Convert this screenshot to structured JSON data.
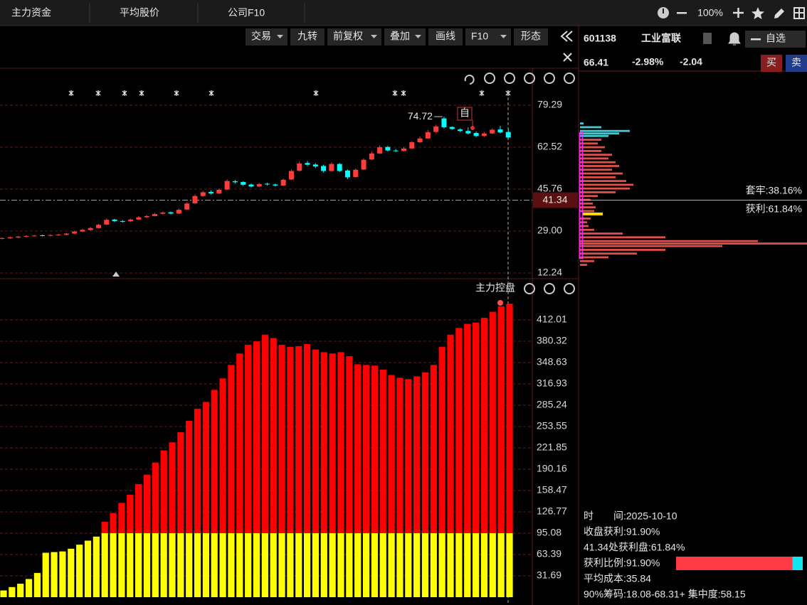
{
  "tabs": [
    "主力资金",
    "平均股价",
    "公司F10"
  ],
  "zoom": "100%",
  "toolbar": [
    "交易",
    "九转",
    "前复权",
    "叠加",
    "画线",
    "F10",
    "形态"
  ],
  "toolbar_dropdown": [
    true,
    false,
    true,
    true,
    false,
    true,
    false
  ],
  "stock": {
    "code": "601138",
    "name": "工业富联",
    "watch": "自选",
    "price": 66.41,
    "change_pct": "-2.98%",
    "change": -2.04,
    "buy": "买",
    "sell": "卖"
  },
  "price_chart": {
    "type": "candlestick",
    "ohlc": [
      [
        25.9,
        26.2,
        26.5,
        25.7
      ],
      [
        26.1,
        26.5,
        26.8,
        25.9
      ],
      [
        26.4,
        26.8,
        27.1,
        26.2
      ],
      [
        26.7,
        27.0,
        27.3,
        26.5
      ],
      [
        27.0,
        27.2,
        27.5,
        26.8
      ],
      [
        27.3,
        27.1,
        27.6,
        26.9
      ],
      [
        27.1,
        27.4,
        27.7,
        26.9
      ],
      [
        27.4,
        27.6,
        27.9,
        27.2
      ],
      [
        27.5,
        28.0,
        28.3,
        27.3
      ],
      [
        28.0,
        28.8,
        29.1,
        27.8
      ],
      [
        28.8,
        29.5,
        29.9,
        28.6
      ],
      [
        29.4,
        30.2,
        30.6,
        29.2
      ],
      [
        30.2,
        31.5,
        31.9,
        30.0
      ],
      [
        31.6,
        33.5,
        34.0,
        31.4
      ],
      [
        33.6,
        33.0,
        33.9,
        32.6
      ],
      [
        33.0,
        32.8,
        33.4,
        32.4
      ],
      [
        32.9,
        33.6,
        34.0,
        32.6
      ],
      [
        33.6,
        34.5,
        35.0,
        33.4
      ],
      [
        34.5,
        35.0,
        35.4,
        34.2
      ],
      [
        35.0,
        35.8,
        36.3,
        34.8
      ],
      [
        35.9,
        36.4,
        36.9,
        35.6
      ],
      [
        36.5,
        36.0,
        36.8,
        35.6
      ],
      [
        36.0,
        37.5,
        38.0,
        35.8
      ],
      [
        37.6,
        40.0,
        40.5,
        37.4
      ],
      [
        40.1,
        43.0,
        43.6,
        39.8
      ],
      [
        43.0,
        44.5,
        45.0,
        42.6
      ],
      [
        44.6,
        44.0,
        45.2,
        43.6
      ],
      [
        44.0,
        45.5,
        46.0,
        43.8
      ],
      [
        45.6,
        49.0,
        49.6,
        45.4
      ],
      [
        48.9,
        48.5,
        49.4,
        48.0
      ],
      [
        48.6,
        47.5,
        48.9,
        47.0
      ],
      [
        47.6,
        46.8,
        48.0,
        46.4
      ],
      [
        46.8,
        47.8,
        48.2,
        46.5
      ],
      [
        47.9,
        47.6,
        48.3,
        47.2
      ],
      [
        47.6,
        47.2,
        48.0,
        46.8
      ],
      [
        47.2,
        49.5,
        50.0,
        47.0
      ],
      [
        49.6,
        53.0,
        53.6,
        49.4
      ],
      [
        53.1,
        56.0,
        56.8,
        52.8
      ],
      [
        56.2,
        55.5,
        57.0,
        55.0
      ],
      [
        55.6,
        54.8,
        56.2,
        54.2
      ],
      [
        55.0,
        53.0,
        55.5,
        52.4
      ],
      [
        53.0,
        55.8,
        56.4,
        52.8
      ],
      [
        55.8,
        53.0,
        56.2,
        52.6
      ],
      [
        53.2,
        50.5,
        53.6,
        49.8
      ],
      [
        50.6,
        53.5,
        54.0,
        50.4
      ],
      [
        53.6,
        57.5,
        58.0,
        53.4
      ],
      [
        57.6,
        60.0,
        60.8,
        57.4
      ],
      [
        60.0,
        62.5,
        63.2,
        59.8
      ],
      [
        62.6,
        61.2,
        63.0,
        60.8
      ],
      [
        61.2,
        61.0,
        61.8,
        60.6
      ],
      [
        61.0,
        62.0,
        62.6,
        60.8
      ],
      [
        62.0,
        64.5,
        65.0,
        61.8
      ],
      [
        64.5,
        66.0,
        66.8,
        64.2
      ],
      [
        66.0,
        68.5,
        69.4,
        65.8
      ],
      [
        68.6,
        70.8,
        71.5,
        68.2
      ],
      [
        74.0,
        70.5,
        74.72,
        70.0
      ],
      [
        70.6,
        69.8,
        70.8,
        69.4
      ],
      [
        69.6,
        69.0,
        70.0,
        68.6
      ],
      [
        69.0,
        68.0,
        70.5,
        67.6
      ],
      [
        68.2,
        67.0,
        68.8,
        66.5
      ],
      [
        67.0,
        68.0,
        68.6,
        66.6
      ],
      [
        68.0,
        69.5,
        70.0,
        67.8
      ],
      [
        69.6,
        68.4,
        71.0,
        68.0
      ],
      [
        68.6,
        66.41,
        69.8,
        66.0
      ]
    ],
    "ylim": [
      9.97,
      94.06
    ],
    "yticks": [
      79.29,
      62.52,
      45.76,
      {
        "value": 29,
        "label": "29.00"
      },
      12.24
    ],
    "up_color": "#ff3c3c",
    "down_color": "#00ffff",
    "high_label": 74.72,
    "tag": "自",
    "cursor": 41.34
  },
  "indicator": {
    "type": "bar",
    "title": "主力控盘",
    "base": [
      10,
      15,
      20,
      27,
      36,
      66,
      67,
      68,
      72,
      78,
      84,
      90,
      95.08,
      95.08,
      95.08,
      95.08,
      95.08,
      95.08,
      95.08,
      95.08,
      95.08,
      95.08,
      95.08,
      95.08,
      95.08,
      95.08,
      95.08,
      95.08,
      95.08,
      95.08,
      95.08,
      95.08,
      95.08,
      95.08,
      95.08,
      95.08,
      95.08,
      95.08,
      95.08,
      95.08,
      95.08,
      95.08,
      95.08,
      95.08,
      95.08,
      95.08,
      95.08,
      95.08,
      95.08,
      95.08,
      95.08,
      95.08,
      95.08,
      95.08,
      95.08,
      95.08,
      95.08,
      95.08,
      95.08,
      95.08,
      95.08
    ],
    "excess": [
      0,
      0,
      0,
      0,
      0,
      0,
      0,
      0,
      0,
      0,
      0,
      0,
      17,
      30,
      45,
      57,
      73,
      87,
      105,
      123,
      135,
      150,
      167,
      185,
      195,
      213,
      230,
      250,
      267,
      280,
      285,
      295,
      290,
      280,
      277,
      278,
      281,
      273,
      269,
      267,
      269,
      263,
      251,
      250,
      249,
      243,
      235,
      231,
      229,
      233,
      239,
      250,
      277,
      295,
      305,
      311,
      313,
      320,
      329,
      337,
      341
    ],
    "base_color": "#ffff00",
    "excess_color": "#ff0000",
    "ylim": [
      0,
      472.2
    ],
    "yticks": [
      31.69,
      63.39,
      95.08,
      126.77,
      158.47,
      190.16,
      221.85,
      253.55,
      285.24,
      316.93,
      348.63,
      380.32,
      412.01
    ]
  },
  "chips": {
    "rows": [
      [
        72,
        5
      ],
      [
        70.5,
        30
      ],
      [
        69,
        70
      ],
      [
        68,
        55
      ],
      [
        67,
        40
      ],
      [
        65.5,
        30
      ],
      [
        64,
        25
      ],
      [
        62.5,
        35
      ],
      [
        61,
        30
      ],
      [
        59.5,
        45
      ],
      [
        58,
        40
      ],
      [
        56.5,
        50
      ],
      [
        55,
        55
      ],
      [
        53.5,
        45
      ],
      [
        52,
        60
      ],
      [
        50.5,
        50
      ],
      [
        49,
        65
      ],
      [
        47.5,
        75
      ],
      [
        46,
        70
      ],
      [
        44.5,
        50
      ],
      [
        43,
        25
      ],
      [
        41.5,
        15
      ],
      [
        40,
        18
      ],
      [
        38.5,
        22
      ],
      [
        37,
        20
      ],
      [
        34,
        15
      ],
      [
        32.5,
        10
      ],
      [
        31,
        12
      ],
      [
        29.5,
        20
      ],
      [
        28,
        60
      ],
      [
        26.5,
        120
      ],
      [
        25,
        250
      ],
      [
        24,
        320
      ],
      [
        23,
        200
      ],
      [
        21.5,
        120
      ],
      [
        20,
        80
      ],
      [
        18.5,
        40
      ],
      [
        17,
        20
      ],
      [
        15.5,
        10
      ]
    ],
    "above_color": "#46c8d2",
    "below_color": "#e0504a",
    "range": [
      18.08,
      68.31
    ],
    "cost": 35.84,
    "trapped": "套牢:38.16%",
    "profit": "获利:61.84%"
  },
  "info": {
    "lines": [
      "时　　间:2025-10-10",
      "收盘获利:91.90%",
      "41.34处获利盘:61.84%",
      "获利比例:91.90%",
      "平均成本:35.84",
      "90%筹码:18.08-68.31+ 集中度:58.15"
    ],
    "profit_ratio": 91.9
  }
}
